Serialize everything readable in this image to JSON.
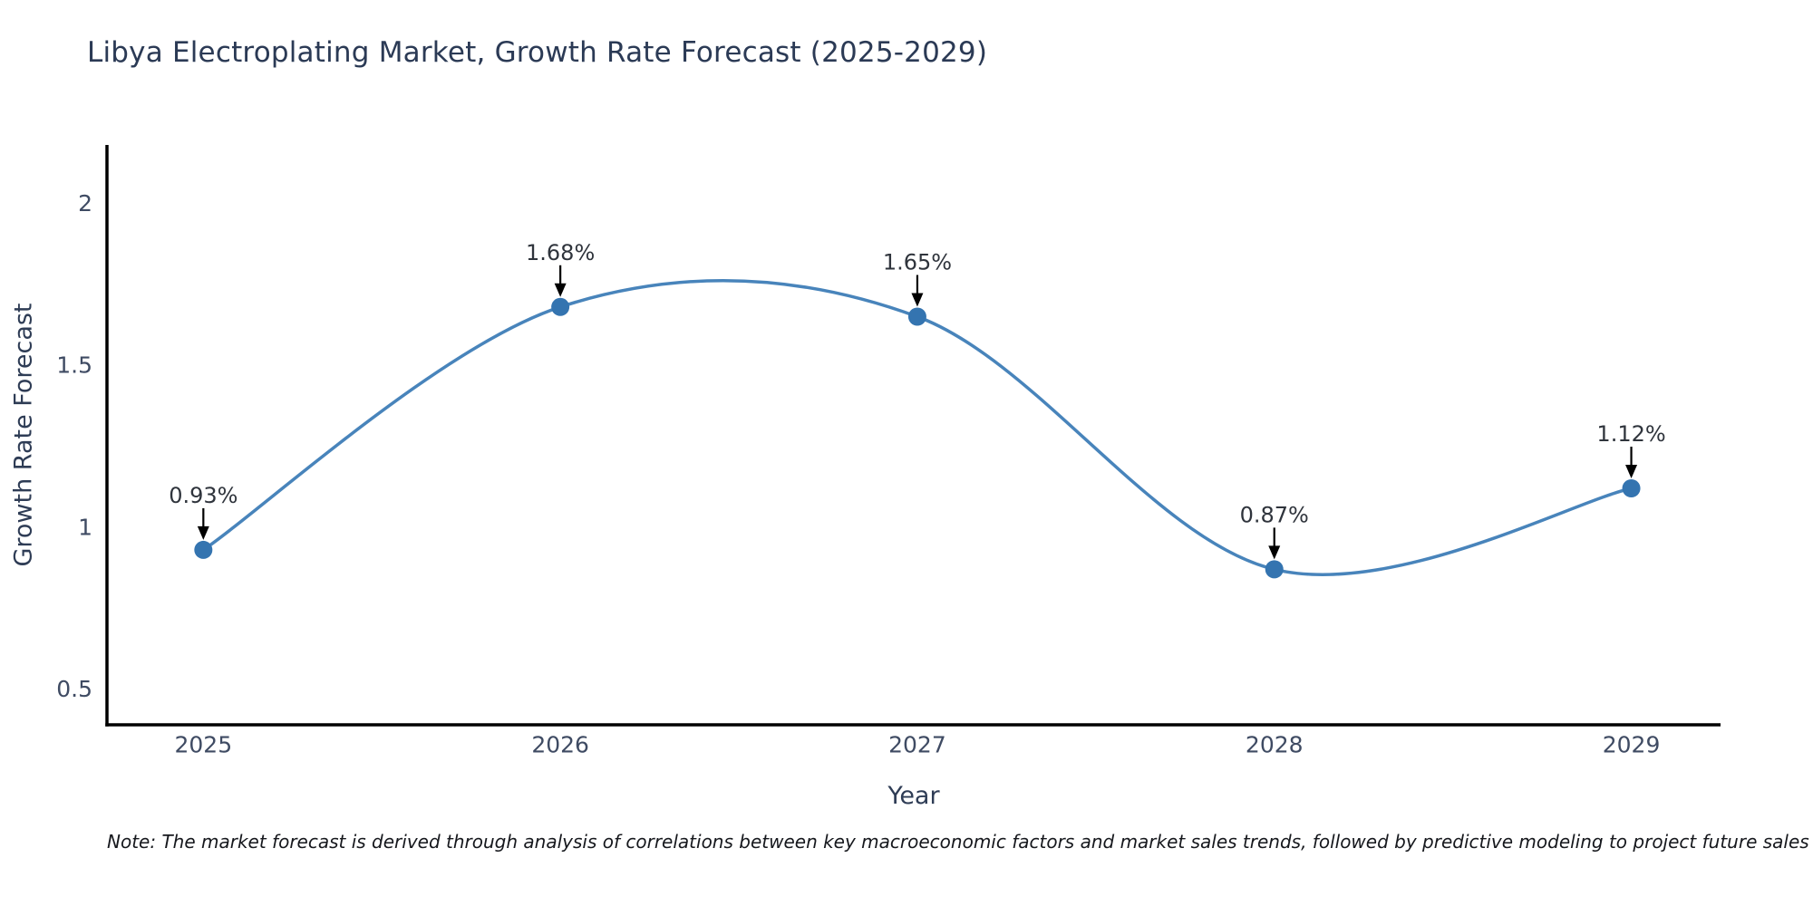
{
  "page": {
    "note": "Note: The market forecast is derived through analysis of correlations between key macroeconomic factors and market sales trends, followed by predictive modeling to project future sales"
  },
  "chart_data": {
    "type": "line",
    "title": "Libya Electroplating Market, Growth Rate Forecast (2025-2029)",
    "xlabel": "Year",
    "ylabel": "Growth Rate Forecast",
    "x": [
      2025,
      2026,
      2027,
      2028,
      2029
    ],
    "y": [
      0.93,
      1.68,
      1.65,
      0.87,
      1.12
    ],
    "labels": [
      "0.93%",
      "1.68%",
      "1.65%",
      "0.87%",
      "1.12%"
    ],
    "xticks": [
      2025,
      2026,
      2027,
      2028,
      2029
    ],
    "yticks": [
      0.5,
      1,
      1.5,
      2
    ],
    "xlim": [
      2024.73,
      2029.25
    ],
    "ylim": [
      0.39,
      2.18
    ],
    "curve": "smooth-spline",
    "grid": false,
    "legend": false,
    "line_color": "#4884bb",
    "marker_color": "#3474b0",
    "arrow_color": "#000000",
    "axis_color": "#000000"
  }
}
